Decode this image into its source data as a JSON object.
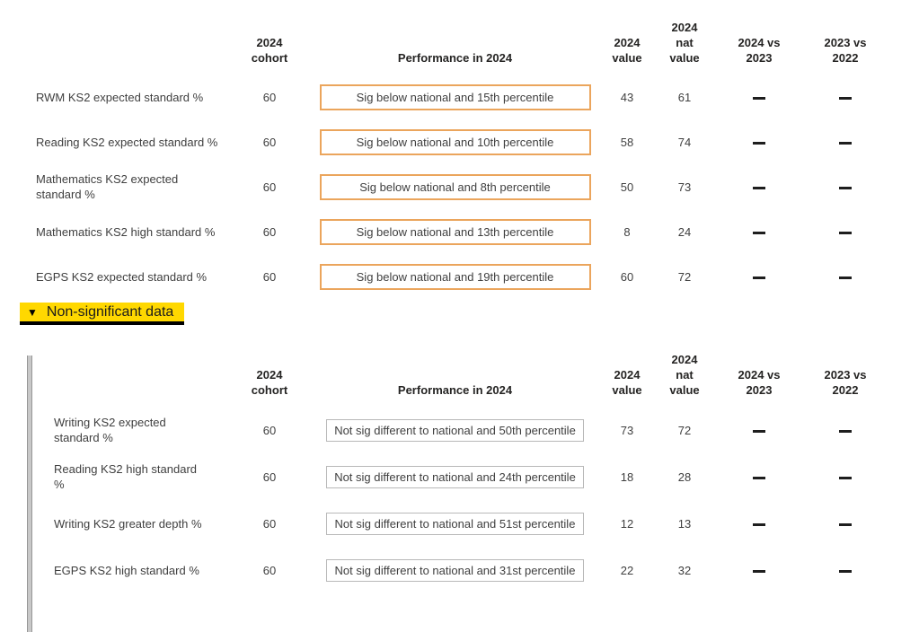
{
  "colors": {
    "significant_border": "#EBA55C",
    "non_significant_border": "#B8B8B8",
    "highlight_yellow": "#FFD800",
    "header_text": "#252423",
    "body_text": "#3F3F3F",
    "dash": "#1E1E1E",
    "scrollbar_gray": "#C8C8C8"
  },
  "columns": {
    "cohort": "2024\ncohort",
    "performance": "Performance in 2024",
    "value": "2024\nvalue",
    "nat_value": "2024\nnat\nvalue",
    "vs_2023": "2024 vs\n2023",
    "vs_2022": "2023 vs\n2022"
  },
  "significant_table": {
    "rows": [
      {
        "label": "RWM KS2 expected standard %",
        "cohort": "60",
        "performance": "Sig below national and 15th percentile",
        "value": "43",
        "nat_value": "61",
        "vs_2023": "—",
        "vs_2022": "—"
      },
      {
        "label": "Reading KS2 expected standard %",
        "cohort": "60",
        "performance": "Sig below national and 10th percentile",
        "value": "58",
        "nat_value": "74",
        "vs_2023": "—",
        "vs_2022": "—"
      },
      {
        "label": "Mathematics KS2 expected standard %",
        "cohort": "60",
        "performance": "Sig below national and 8th percentile",
        "value": "50",
        "nat_value": "73",
        "vs_2023": "—",
        "vs_2022": "—"
      },
      {
        "label": "Mathematics KS2 high standard %",
        "cohort": "60",
        "performance": "Sig below national and 13th percentile",
        "value": "8",
        "nat_value": "24",
        "vs_2023": "—",
        "vs_2022": "—"
      },
      {
        "label": "EGPS KS2 expected standard %",
        "cohort": "60",
        "performance": "Sig below national and 19th percentile",
        "value": "60",
        "nat_value": "72",
        "vs_2023": "—",
        "vs_2022": "—"
      }
    ]
  },
  "non_significant_section": {
    "collapse_icon": "▼",
    "title": "Non-significant data",
    "table": {
      "rows": [
        {
          "label": "Writing KS2 expected standard %",
          "cohort": "60",
          "performance": "Not sig different to national and 50th percentile",
          "value": "73",
          "nat_value": "72",
          "vs_2023": "—",
          "vs_2022": "—"
        },
        {
          "label": "Reading KS2 high standard %",
          "cohort": "60",
          "performance": "Not sig different to national and 24th percentile",
          "value": "18",
          "nat_value": "28",
          "vs_2023": "—",
          "vs_2022": "—"
        },
        {
          "label": "Writing KS2 greater depth %",
          "cohort": "60",
          "performance": "Not sig different to national and 51st percentile",
          "value": "12",
          "nat_value": "13",
          "vs_2023": "—",
          "vs_2022": "—"
        },
        {
          "label": "EGPS KS2 high standard %",
          "cohort": "60",
          "performance": "Not sig different to national and 31st percentile",
          "value": "22",
          "nat_value": "32",
          "vs_2023": "—",
          "vs_2022": "—"
        }
      ]
    }
  }
}
